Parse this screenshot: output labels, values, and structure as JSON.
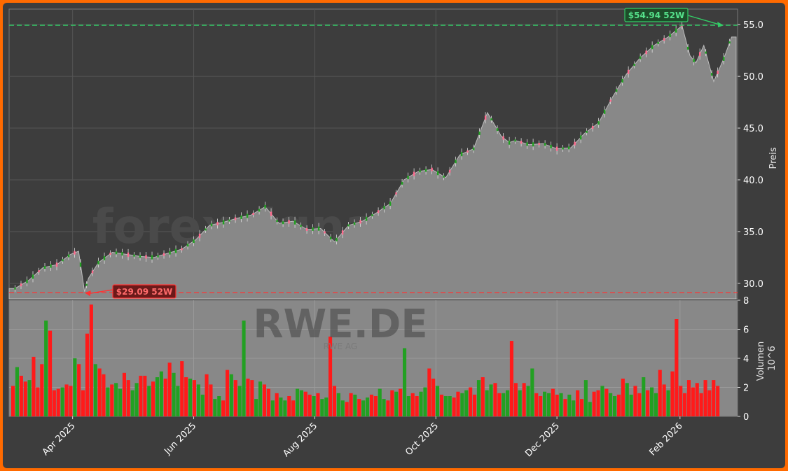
{
  "watermark": "forexsignale.trade",
  "watermark_symbol": "RWE.DE",
  "watermark_sub": "RWE AG",
  "colors": {
    "frame_bg": "#3d3d3d",
    "border": "#ff6a00",
    "area": "#888888",
    "up": "#22a022",
    "down": "#ff1a1a",
    "high_line": "#33cc66",
    "low_line": "#ff3333"
  },
  "chart_data": [
    {
      "type": "area",
      "ylabel": "Preis",
      "ylim": [
        28.5,
        56.5
      ],
      "yticks": [
        "30.0",
        "35.0",
        "40.0",
        "45.0",
        "50.0",
        "55.0"
      ],
      "xticks": [
        "Apr 2025",
        "Jun 2025",
        "Aug 2025",
        "Oct 2025",
        "Dec 2025",
        "Feb 2026"
      ],
      "annotations": [
        {
          "label": "$54.94 52W",
          "value": 54.94,
          "kind": "high"
        },
        {
          "label": "$29.09 52W",
          "value": 29.09,
          "kind": "low"
        }
      ],
      "price_x": [
        "2025-03-03",
        "2025-03-10",
        "2025-03-17",
        "2025-03-24",
        "2025-03-31",
        "2025-04-04",
        "2025-04-07",
        "2025-04-09",
        "2025-04-14",
        "2025-04-21",
        "2025-04-28",
        "2025-05-05",
        "2025-05-12",
        "2025-05-19",
        "2025-05-26",
        "2025-06-02",
        "2025-06-09",
        "2025-06-16",
        "2025-06-23",
        "2025-06-30",
        "2025-07-07",
        "2025-07-14",
        "2025-07-21",
        "2025-07-28",
        "2025-08-04",
        "2025-08-11",
        "2025-08-18",
        "2025-08-25",
        "2025-09-01",
        "2025-09-08",
        "2025-09-15",
        "2025-09-22",
        "2025-09-29",
        "2025-10-06",
        "2025-10-13",
        "2025-10-20",
        "2025-10-27",
        "2025-11-03",
        "2025-11-07",
        "2025-11-10",
        "2025-11-17",
        "2025-11-24",
        "2025-12-01",
        "2025-12-08",
        "2025-12-15",
        "2025-12-22",
        "2025-12-29",
        "2026-01-05",
        "2026-01-12",
        "2026-01-19",
        "2026-01-26",
        "2026-02-02",
        "2026-02-06",
        "2026-02-09",
        "2026-02-13",
        "2026-02-18",
        "2026-02-23",
        "2026-02-27"
      ],
      "price_y": [
        29.5,
        30.3,
        31.5,
        31.8,
        32.8,
        33.1,
        29.2,
        30.5,
        32.0,
        33.0,
        32.8,
        32.6,
        32.5,
        32.9,
        33.3,
        34.2,
        35.6,
        35.9,
        36.3,
        36.6,
        37.4,
        35.8,
        36.0,
        35.2,
        35.3,
        34.0,
        35.6,
        36.0,
        36.8,
        37.7,
        40.0,
        40.8,
        41.0,
        40.2,
        42.4,
        43.0,
        46.5,
        44.2,
        43.6,
        43.8,
        43.4,
        43.5,
        43.0,
        43.1,
        44.5,
        45.5,
        48.0,
        50.2,
        51.8,
        53.0,
        53.8,
        54.9,
        52.0,
        51.3,
        53.0,
        49.5,
        51.7,
        53.8
      ],
      "volume": {
        "ylabel": "Volumen",
        "scale": "10^6",
        "ylim": [
          0,
          8
        ],
        "yticks": [
          "0",
          "2",
          "4",
          "6",
          "8"
        ],
        "values": [
          2.1,
          3.4,
          2.8,
          2.4,
          2.5,
          4.1,
          2.0,
          3.6,
          6.6,
          5.9,
          1.8,
          1.9,
          2.0,
          2.2,
          2.1,
          4.0,
          3.6,
          1.8,
          5.7,
          7.7,
          3.6,
          3.3,
          2.9,
          2.0,
          2.2,
          2.3,
          1.9,
          3.0,
          2.5,
          1.8,
          2.3,
          2.8,
          2.8,
          2.1,
          2.4,
          2.7,
          3.1,
          2.6,
          3.7,
          3.0,
          2.1,
          3.8,
          2.7,
          2.6,
          2.5,
          2.2,
          1.5,
          2.9,
          2.2,
          1.2,
          1.4,
          1.1,
          3.2,
          2.9,
          2.5,
          2.1,
          6.6,
          2.6,
          2.5,
          1.2,
          2.4,
          2.2,
          1.9,
          1.1,
          1.6,
          1.3,
          1.1,
          1.4,
          1.1,
          1.9,
          1.8,
          1.7,
          1.5,
          1.4,
          1.6,
          1.2,
          1.3,
          5.5,
          2.1,
          1.6,
          1.1,
          1.0,
          1.6,
          1.5,
          1.2,
          1.1,
          1.3,
          1.5,
          1.4,
          1.9,
          1.2,
          1.1,
          1.8,
          1.7,
          1.9,
          4.7,
          1.4,
          1.6,
          1.4,
          1.7,
          2.0,
          3.3,
          2.6,
          2.1,
          1.5,
          1.4,
          1.4,
          1.3,
          1.7,
          1.6,
          1.8,
          2.0,
          1.5,
          2.5,
          2.7,
          1.8,
          2.2,
          2.3,
          1.6,
          1.6,
          1.8,
          5.2,
          2.3,
          1.8,
          2.3,
          2.1,
          3.3,
          1.6,
          1.4,
          1.7,
          1.6,
          1.9,
          1.5,
          1.6,
          1.2,
          1.5,
          1.1,
          1.8,
          1.2,
          2.5,
          1.0,
          1.7,
          1.8,
          2.1,
          1.9,
          1.6,
          1.4,
          1.5,
          2.6,
          2.3,
          1.5,
          2.1,
          1.6,
          2.7,
          1.8,
          2.0,
          1.6,
          3.2,
          2.2,
          1.8,
          3.1,
          6.7,
          2.1,
          1.6,
          2.5,
          2.0,
          2.3,
          1.6,
          2.5,
          1.8,
          2.5,
          2.1
        ],
        "directions": "duddudddudddudduddddudduduudduudduduudduudduduudduudduduudduudduduudduudduduudduudduduudduudduduudduudduduudduudduduudduudduduudduudduduudduudduduudduudduduuddu"
      }
    }
  ]
}
